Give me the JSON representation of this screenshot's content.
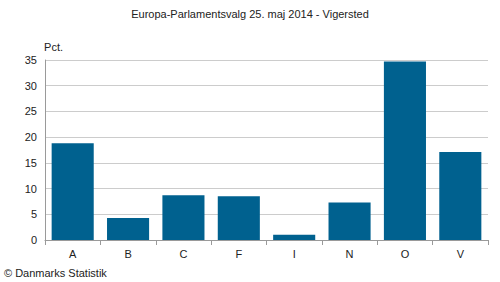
{
  "chart_data": {
    "type": "bar",
    "title": "Europa-Parlamentsvalg 25. maj 2014 - Vigersted",
    "y_label": "Pct.",
    "annotations": [
      "© Danmarks Statistik"
    ],
    "categories": [
      "A",
      "B",
      "C",
      "F",
      "I",
      "N",
      "O",
      "V"
    ],
    "values": [
      18.8,
      4.3,
      8.7,
      8.5,
      1.0,
      7.3,
      34.7,
      17.1
    ],
    "color": "#00618f",
    "ylim": [
      0,
      35
    ],
    "yticks": [
      0,
      5,
      10,
      15,
      20,
      25,
      30,
      35
    ],
    "grid": true
  }
}
